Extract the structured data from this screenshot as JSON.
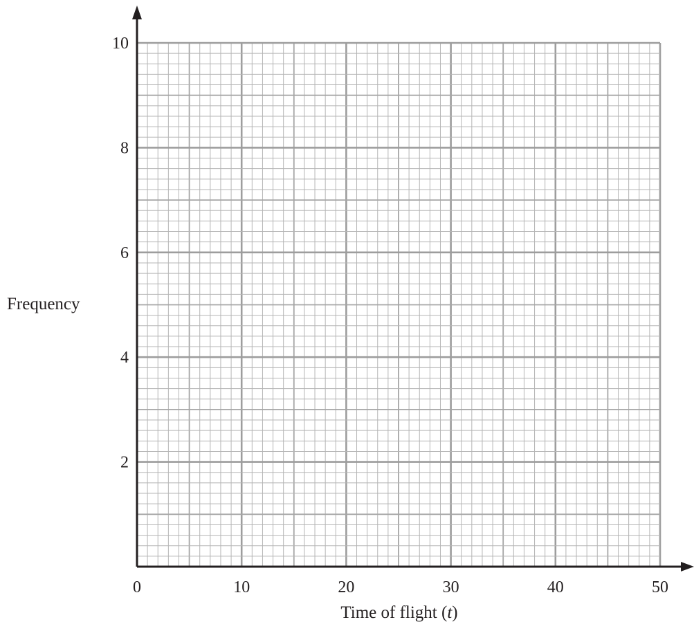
{
  "chart_data": {
    "type": "bar",
    "title": "",
    "xlabel_main": "Time of flight (",
    "xlabel_var": "t",
    "xlabel_end": ")",
    "ylabel": "Frequency",
    "xlim": [
      0,
      50
    ],
    "ylim": [
      0,
      10
    ],
    "x_ticks": [
      "0",
      "10",
      "20",
      "30",
      "40",
      "50"
    ],
    "y_ticks": [
      "2",
      "4",
      "6",
      "8",
      "10"
    ],
    "grid": true,
    "values": [],
    "colors": {
      "major_grid": "#9d9d9d",
      "mid_grid": "#a6a6a6",
      "minor_grid": "#b5b5b5",
      "axis": "#231f20"
    }
  }
}
